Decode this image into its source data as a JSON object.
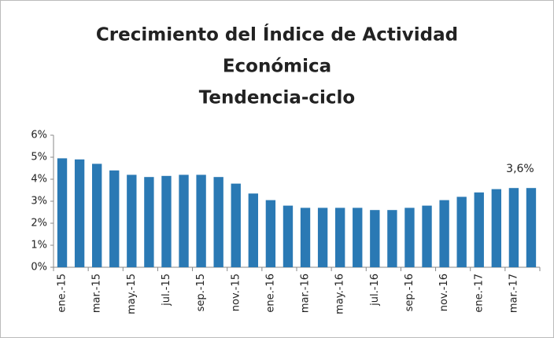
{
  "chart_data": {
    "type": "bar",
    "title_lines": [
      "Crecimiento del Índice de Actividad",
      "Económica",
      "Tendencia-ciclo"
    ],
    "categories": [
      "ene.-15",
      null,
      "mar.-15",
      null,
      "may.-15",
      null,
      "jul.-15",
      null,
      "sep.-15",
      null,
      "nov.-15",
      null,
      "ene.-16",
      null,
      "mar.-16",
      null,
      "may.-16",
      null,
      "jul.-16",
      null,
      "sep.-16",
      null,
      "nov.-16",
      null,
      "ene.-17",
      null,
      "mar.-17",
      null
    ],
    "values": [
      4.95,
      4.9,
      4.7,
      4.4,
      4.2,
      4.1,
      4.15,
      4.2,
      4.2,
      4.1,
      3.8,
      3.35,
      3.05,
      2.8,
      2.7,
      2.7,
      2.7,
      2.7,
      2.6,
      2.6,
      2.7,
      2.8,
      3.05,
      3.2,
      3.4,
      3.55,
      3.6,
      3.6
    ],
    "value_labels": [
      null,
      null,
      null,
      null,
      null,
      null,
      null,
      null,
      null,
      null,
      null,
      null,
      null,
      null,
      null,
      null,
      null,
      null,
      null,
      null,
      null,
      null,
      null,
      null,
      null,
      null,
      null,
      "3,6%"
    ],
    "color": "#2a79b4",
    "ylim": [
      0,
      6
    ],
    "yticks": [
      {
        "value": 0,
        "label": "0%"
      },
      {
        "value": 1,
        "label": "1%"
      },
      {
        "value": 2,
        "label": "2%"
      },
      {
        "value": 3,
        "label": "3%"
      },
      {
        "value": 4,
        "label": "4%"
      },
      {
        "value": 5,
        "label": "5%"
      },
      {
        "value": 6,
        "label": "6%"
      }
    ],
    "grid": false
  }
}
